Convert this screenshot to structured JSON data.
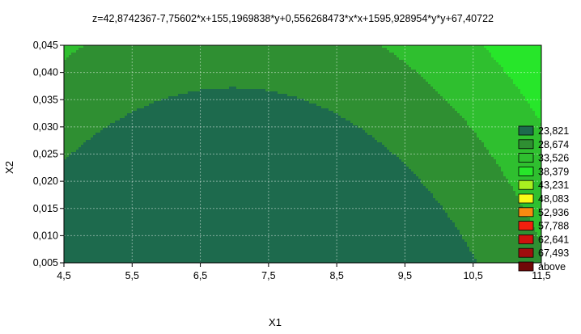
{
  "chart_data": {
    "type": "contour",
    "title": "z=42,8742367-7,75602*x+155,1969838*y+0,556268473*x*x+1595,928954*y*y+67,40722",
    "xlabel": "X1",
    "ylabel": "X2",
    "xlim": [
      4.5,
      11.5
    ],
    "ylim": [
      0.005,
      0.045
    ],
    "x_ticks": [
      "4,5",
      "5,5",
      "6,5",
      "7,5",
      "8,5",
      "9,5",
      "10,5",
      "11,5"
    ],
    "y_ticks": [
      "0,005",
      "0,010",
      "0,015",
      "0,020",
      "0,025",
      "0,030",
      "0,035",
      "0,040",
      "0,045"
    ],
    "contour_levels": [
      23.821,
      28.674,
      33.526,
      38.379,
      43.231,
      48.083,
      52.936,
      57.788,
      62.641,
      67.493
    ],
    "legend": {
      "position": "right",
      "entries": [
        {
          "label": "23,821",
          "color": "#1d6a4d"
        },
        {
          "label": "28,674",
          "color": "#2f8f32"
        },
        {
          "label": "33,526",
          "color": "#2fbf2f"
        },
        {
          "label": "38,379",
          "color": "#27e62a"
        },
        {
          "label": "43,231",
          "color": "#a8f020"
        },
        {
          "label": "48,083",
          "color": "#fbfb18"
        },
        {
          "label": "52,936",
          "color": "#f88a10"
        },
        {
          "label": "57,788",
          "color": "#f31f0e"
        },
        {
          "label": "62,641",
          "color": "#d0110e"
        },
        {
          "label": "67,493",
          "color": "#a10e0e"
        },
        {
          "label": "above",
          "color": "#700808"
        }
      ]
    },
    "grid": true
  }
}
